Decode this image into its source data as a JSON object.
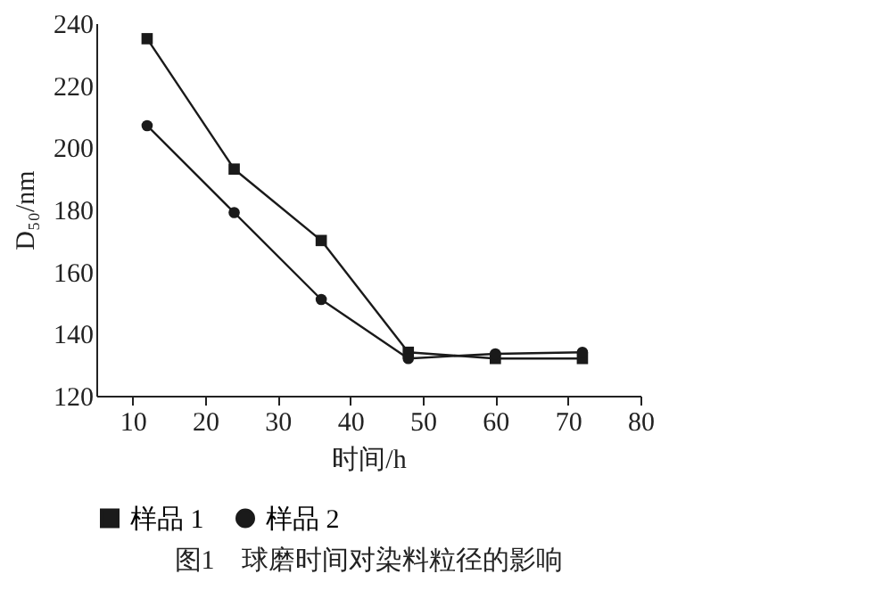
{
  "chart_data": {
    "type": "line",
    "title": "图1　球磨时间对染料粒径的影响",
    "xlabel": "时间/h",
    "ylabel": "D₅₀/nm",
    "x": [
      12,
      24,
      36,
      48,
      60,
      72
    ],
    "series": [
      {
        "name": "样品 1",
        "color": "#1a1a1a",
        "marker": "square",
        "values": [
          235,
          193,
          170,
          134,
          132,
          132
        ]
      },
      {
        "name": "样品 2",
        "color": "#1a1a1a",
        "marker": "circle",
        "values": [
          207,
          179,
          151,
          132,
          133.5,
          134
        ]
      }
    ],
    "xlim": [
      5,
      80
    ],
    "xticks": [
      10,
      20,
      30,
      40,
      50,
      60,
      70,
      80
    ],
    "ylim": [
      120,
      240
    ],
    "yticks": [
      120,
      140,
      160,
      180,
      200,
      220,
      240
    ],
    "grid": false,
    "legend": "bottom",
    "line_style": "solid"
  }
}
